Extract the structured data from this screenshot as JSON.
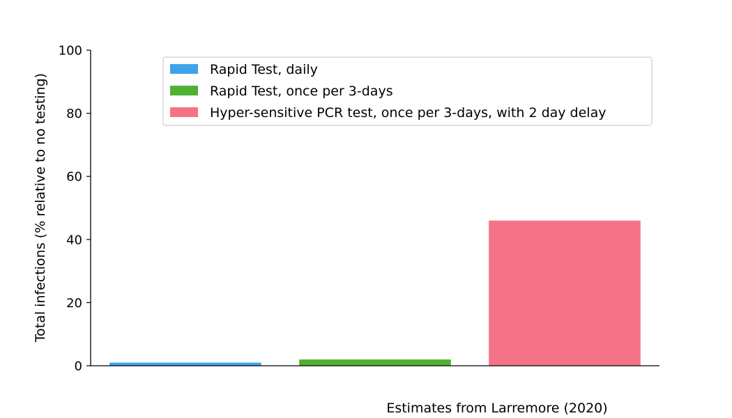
{
  "chart_data": {
    "type": "bar",
    "title": "",
    "xlabel": "Estimates from Larremore (2020)",
    "ylabel": "Total infections (% relative to no testing)",
    "ylim": [
      0,
      100
    ],
    "yticks": [
      0,
      20,
      40,
      60,
      80,
      100
    ],
    "grid": false,
    "legend": {
      "location": "top-right"
    },
    "series": [
      {
        "name": "Rapid Test, daily",
        "value": 1,
        "color": "#3fa3ec"
      },
      {
        "name": "Rapid Test, once per 3-days",
        "value": 2,
        "color": "#4fb232"
      },
      {
        "name": "Hyper-sensitive PCR test, once per 3-days, with 2 day delay",
        "value": 46,
        "color": "#f57388"
      }
    ]
  }
}
